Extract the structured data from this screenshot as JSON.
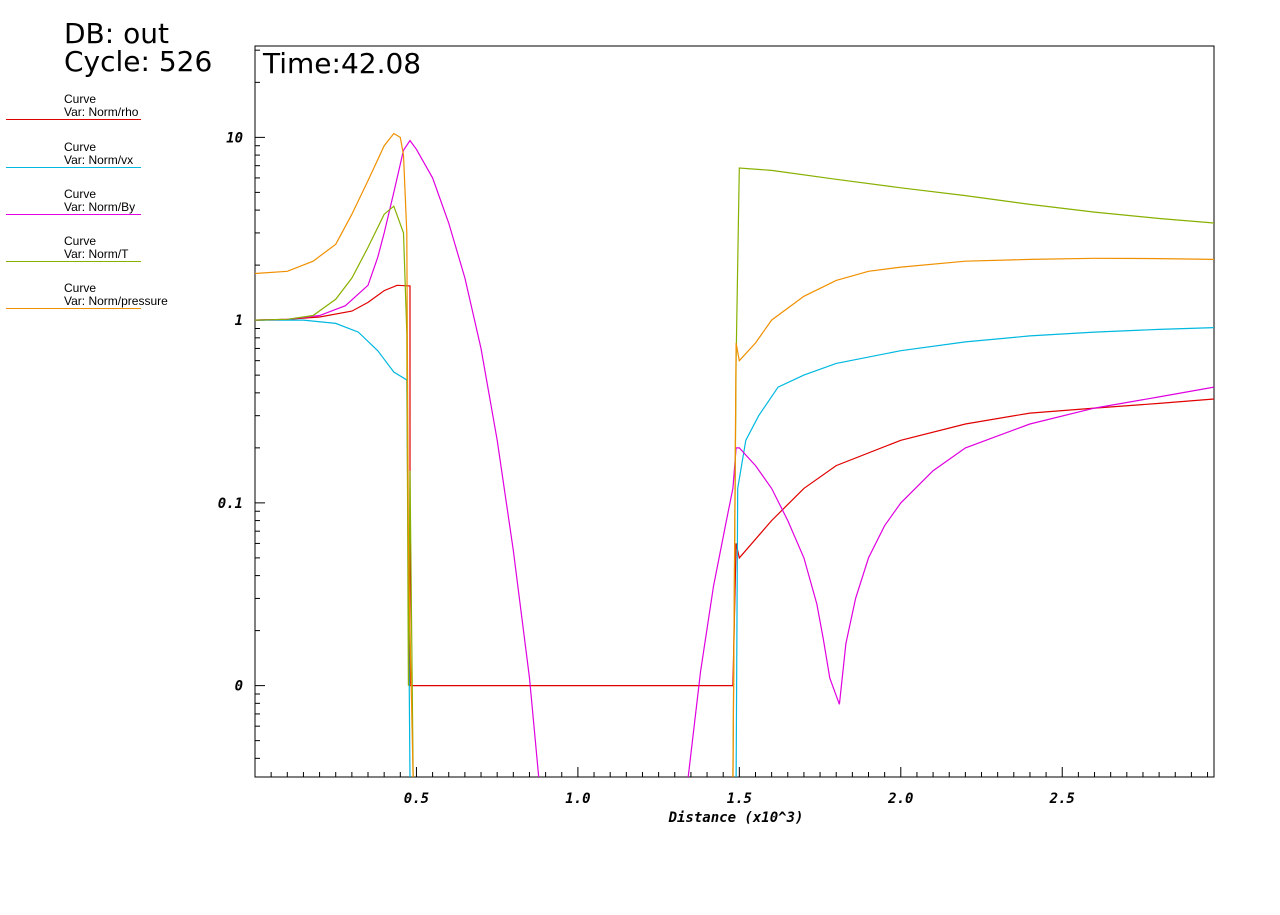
{
  "header": {
    "db": "DB: out",
    "cycle": "Cycle: 526"
  },
  "legend": [
    {
      "title": "Curve",
      "var": "Var: Norm/rho",
      "color": "#e00000"
    },
    {
      "title": "Curve",
      "var": "Var: Norm/vx",
      "color": "#00b8e0"
    },
    {
      "title": "Curve",
      "var": "Var: Norm/By",
      "color": "#e000e0"
    },
    {
      "title": "Curve",
      "var": "Var: Norm/T",
      "color": "#88b000"
    },
    {
      "title": "Curve",
      "var": "Var: Norm/pressure",
      "color": "#f09000"
    }
  ],
  "chart_data": {
    "type": "line",
    "time_label": "Time:42.08",
    "xlabel": "Distance (x10^3)",
    "ylabel": "",
    "xlim": [
      0.0,
      2.97
    ],
    "y_scale": "log",
    "y_ticks": [
      {
        "label": "10",
        "value": 10
      },
      {
        "label": "1",
        "value": 1
      },
      {
        "label": "0.1",
        "value": 0.1
      },
      {
        "label": "0",
        "value": 0.01
      }
    ],
    "x_ticks": [
      {
        "label": "0.5",
        "value": 0.5
      },
      {
        "label": "1.0",
        "value": 1.0
      },
      {
        "label": "1.5",
        "value": 1.5
      },
      {
        "label": "2.0",
        "value": 2.0
      },
      {
        "label": "2.5",
        "value": 2.5
      }
    ],
    "ylim_log10": [
      -2.5,
      1.5
    ],
    "series": [
      {
        "name": "Norm/rho",
        "color": "#e00000",
        "points": [
          [
            0.0,
            1.0
          ],
          [
            0.1,
            1.01
          ],
          [
            0.2,
            1.04
          ],
          [
            0.3,
            1.12
          ],
          [
            0.35,
            1.25
          ],
          [
            0.4,
            1.45
          ],
          [
            0.44,
            1.55
          ],
          [
            0.48,
            1.54
          ],
          [
            0.48,
            0.01
          ],
          [
            0.5,
            0.01
          ],
          [
            0.9,
            0.01
          ],
          [
            1.2,
            0.01
          ],
          [
            1.48,
            0.01
          ],
          [
            1.49,
            0.06
          ],
          [
            1.5,
            0.05
          ],
          [
            1.6,
            0.08
          ],
          [
            1.7,
            0.12
          ],
          [
            1.8,
            0.16
          ],
          [
            2.0,
            0.22
          ],
          [
            2.2,
            0.27
          ],
          [
            2.4,
            0.31
          ],
          [
            2.6,
            0.33
          ],
          [
            2.8,
            0.35
          ],
          [
            2.97,
            0.37
          ]
        ]
      },
      {
        "name": "Norm/vx",
        "color": "#00b8e0",
        "points": [
          [
            0.0,
            1.0
          ],
          [
            0.15,
            1.0
          ],
          [
            0.25,
            0.96
          ],
          [
            0.32,
            0.86
          ],
          [
            0.38,
            0.68
          ],
          [
            0.43,
            0.52
          ],
          [
            0.47,
            0.47
          ],
          [
            0.48,
            0.003
          ],
          [
            1.49,
            0.003
          ],
          [
            1.495,
            0.12
          ],
          [
            1.52,
            0.22
          ],
          [
            1.56,
            0.3
          ],
          [
            1.62,
            0.43
          ],
          [
            1.7,
            0.5
          ],
          [
            1.8,
            0.58
          ],
          [
            2.0,
            0.68
          ],
          [
            2.2,
            0.76
          ],
          [
            2.4,
            0.82
          ],
          [
            2.6,
            0.86
          ],
          [
            2.8,
            0.89
          ],
          [
            2.97,
            0.91
          ]
        ]
      },
      {
        "name": "Norm/By",
        "color": "#e000e0",
        "points": [
          [
            0.0,
            1.0
          ],
          [
            0.1,
            1.01
          ],
          [
            0.2,
            1.06
          ],
          [
            0.28,
            1.2
          ],
          [
            0.35,
            1.55
          ],
          [
            0.38,
            2.2
          ],
          [
            0.4,
            3.0
          ],
          [
            0.43,
            5.0
          ],
          [
            0.46,
            8.5
          ],
          [
            0.48,
            9.6
          ],
          [
            0.5,
            8.6
          ],
          [
            0.55,
            6.0
          ],
          [
            0.6,
            3.4
          ],
          [
            0.65,
            1.7
          ],
          [
            0.7,
            0.7
          ],
          [
            0.75,
            0.22
          ],
          [
            0.8,
            0.055
          ],
          [
            0.85,
            0.011
          ],
          [
            0.88,
            0.003
          ],
          [
            1.34,
            0.003
          ],
          [
            1.38,
            0.012
          ],
          [
            1.42,
            0.035
          ],
          [
            1.46,
            0.08
          ],
          [
            1.48,
            0.12
          ],
          [
            1.49,
            0.2
          ],
          [
            1.5,
            0.2
          ],
          [
            1.55,
            0.16
          ],
          [
            1.6,
            0.12
          ],
          [
            1.65,
            0.08
          ],
          [
            1.7,
            0.05
          ],
          [
            1.74,
            0.028
          ],
          [
            1.76,
            0.018
          ],
          [
            1.78,
            0.011
          ],
          [
            1.81,
            0.0079
          ],
          [
            1.83,
            0.017
          ],
          [
            1.86,
            0.03
          ],
          [
            1.9,
            0.05
          ],
          [
            1.95,
            0.075
          ],
          [
            2.0,
            0.1
          ],
          [
            2.1,
            0.15
          ],
          [
            2.2,
            0.2
          ],
          [
            2.4,
            0.27
          ],
          [
            2.6,
            0.33
          ],
          [
            2.8,
            0.38
          ],
          [
            2.97,
            0.43
          ]
        ]
      },
      {
        "name": "Norm/T",
        "color": "#88b000",
        "points": [
          [
            0.0,
            1.0
          ],
          [
            0.1,
            1.01
          ],
          [
            0.18,
            1.06
          ],
          [
            0.25,
            1.3
          ],
          [
            0.3,
            1.7
          ],
          [
            0.35,
            2.5
          ],
          [
            0.4,
            3.8
          ],
          [
            0.43,
            4.2
          ],
          [
            0.46,
            3.0
          ],
          [
            0.47,
            0.85
          ],
          [
            0.475,
            0.01
          ],
          [
            0.48,
            0.15
          ],
          [
            0.49,
            0.003
          ],
          [
            1.48,
            0.003
          ],
          [
            1.49,
            0.6
          ],
          [
            1.5,
            6.8
          ],
          [
            1.6,
            6.6
          ],
          [
            1.8,
            5.9
          ],
          [
            2.0,
            5.3
          ],
          [
            2.2,
            4.8
          ],
          [
            2.4,
            4.3
          ],
          [
            2.6,
            3.9
          ],
          [
            2.8,
            3.6
          ],
          [
            2.97,
            3.4
          ]
        ]
      },
      {
        "name": "Norm/pressure",
        "color": "#f09000",
        "points": [
          [
            0.0,
            1.8
          ],
          [
            0.1,
            1.85
          ],
          [
            0.18,
            2.1
          ],
          [
            0.25,
            2.6
          ],
          [
            0.3,
            3.8
          ],
          [
            0.35,
            5.8
          ],
          [
            0.4,
            9.0
          ],
          [
            0.43,
            10.5
          ],
          [
            0.45,
            10.0
          ],
          [
            0.46,
            8.0
          ],
          [
            0.47,
            3.0
          ],
          [
            0.475,
            0.06
          ],
          [
            0.48,
            0.02
          ],
          [
            0.49,
            0.003
          ],
          [
            1.48,
            0.003
          ],
          [
            1.49,
            0.75
          ],
          [
            1.5,
            0.6
          ],
          [
            1.55,
            0.75
          ],
          [
            1.6,
            1.0
          ],
          [
            1.7,
            1.35
          ],
          [
            1.8,
            1.65
          ],
          [
            1.9,
            1.85
          ],
          [
            2.0,
            1.95
          ],
          [
            2.2,
            2.1
          ],
          [
            2.4,
            2.15
          ],
          [
            2.6,
            2.18
          ],
          [
            2.8,
            2.17
          ],
          [
            2.97,
            2.15
          ]
        ]
      }
    ]
  }
}
